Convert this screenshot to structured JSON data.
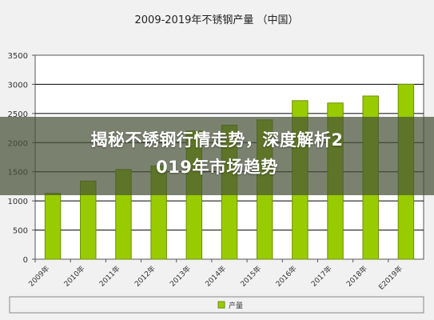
{
  "chart_data": {
    "type": "bar",
    "title": "2009-2019年不锈钢产量 （中国）",
    "categories": [
      "2009年",
      "2010年",
      "2011年",
      "2012年",
      "2013年",
      "2014年",
      "2015年",
      "2016年",
      "2017年",
      "2018年",
      "E2019年"
    ],
    "series": [
      {
        "name": "产量",
        "values": [
          1130,
          1340,
          1540,
          1600,
          2200,
          2300,
          2390,
          2720,
          2680,
          2800,
          3000
        ]
      }
    ],
    "ylim": [
      0,
      3500
    ],
    "yticks": [
      0,
      500,
      1000,
      1500,
      2000,
      2500,
      3000,
      3500
    ],
    "grid": true,
    "legend": "bottom",
    "colors": {
      "bar": "#99cc00",
      "bar_edge": "#6b8f00",
      "grid": "#000000",
      "background": "#f1f1f1"
    }
  },
  "overlay": {
    "line1": "揭秘不锈钢行情走势，深度解析2",
    "line2": "019年市场趋势"
  }
}
